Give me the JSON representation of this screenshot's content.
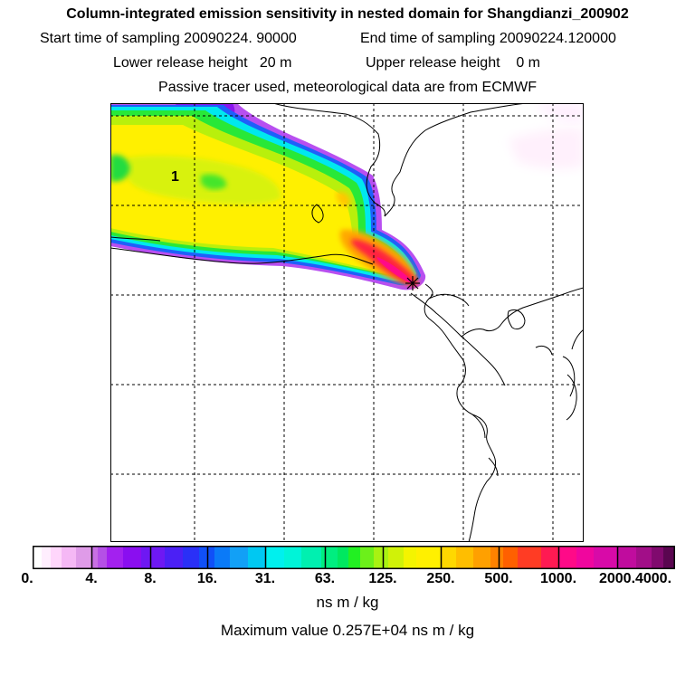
{
  "header": {
    "title": "Column-integrated emission sensitivity in nested domain for Shangdianzi_200902",
    "start_label": "Start time of sampling 20090224. 90000",
    "end_label": "End time of sampling 20090224.120000",
    "lower_label": "Lower release height   20 m",
    "upper_label": "Upper release height    0 m",
    "passive_label": "Passive tracer used, meteorological data are from ECMWF"
  },
  "map": {
    "contour_label": "1",
    "receptor_marker": "star-icon"
  },
  "colorbar": {
    "colors": [
      "#ffffff",
      "#ffeefe",
      "#ffd6fb",
      "#f5b8f5",
      "#df9be8",
      "#c870e4",
      "#b550e6",
      "#a321ef",
      "#8a0ef0",
      "#6e18f3",
      "#4b20f5",
      "#2a30f7",
      "#1050f8",
      "#0a7af8",
      "#12a0f6",
      "#00c8f2",
      "#00f0ee",
      "#00f4d8",
      "#00f0b0",
      "#00ee80",
      "#00e860",
      "#22f022",
      "#6cf01a",
      "#a8f212",
      "#d0f208",
      "#f4f400",
      "#fff000",
      "#ffd800",
      "#ffbe00",
      "#ffa000",
      "#ff8200",
      "#ff6000",
      "#ff3c24",
      "#ff1a52",
      "#ff0a88",
      "#f0069e",
      "#d80aa8",
      "#c00c9e",
      "#a20e88",
      "#800a6e",
      "#5a0650"
    ],
    "boundaries": [
      0,
      10,
      20,
      32,
      48,
      65,
      72,
      82,
      100,
      120,
      146,
      166,
      184,
      201,
      218,
      238,
      257,
      278,
      297,
      319,
      337,
      349,
      362,
      377,
      393,
      410,
      424,
      451,
      468,
      487,
      506,
      520,
      536,
      562,
      581,
      601,
      620,
      646,
      667,
      684,
      697,
      710
    ],
    "major": [
      0,
      65,
      130,
      193,
      257,
      323,
      387,
      451,
      515,
      581,
      646,
      710
    ],
    "ticks": [
      "0.",
      "4.",
      "8.",
      "16.",
      "31.",
      "63.",
      "125.",
      "250.",
      "500.",
      "1000.",
      "2000.",
      "4000."
    ],
    "units": "ns m / kg"
  },
  "footer": {
    "max_value": "Maximum value  0.257E+04 ns m / kg"
  }
}
